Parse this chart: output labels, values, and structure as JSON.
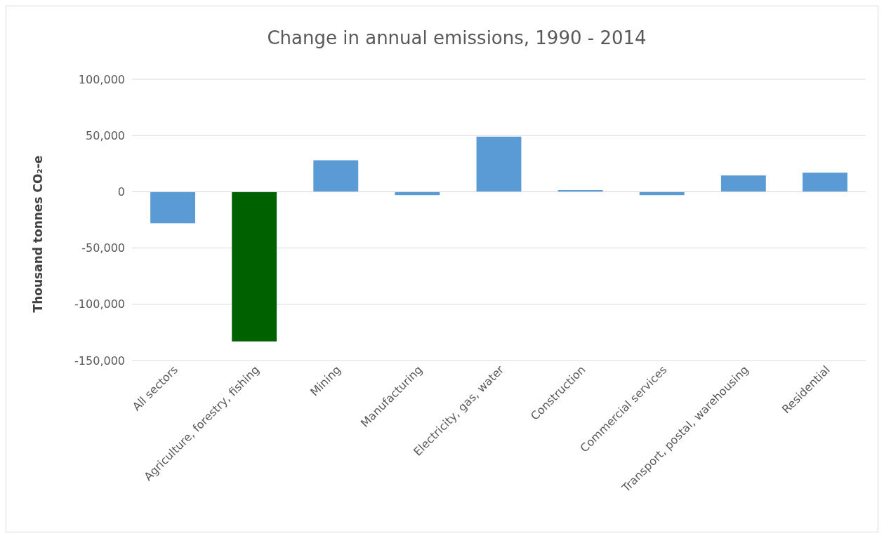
{
  "chart_data": {
    "type": "bar",
    "title": "Change in annual emissions, 1990 - 2014",
    "ylabel": "Thousand tonnes CO₂-e",
    "categories": [
      "All sectors",
      "Agriculture, forestry, fishing",
      "Mining",
      "Manufacturing",
      "Electricity, gas, water",
      "Construction",
      "Commercial services",
      "Transport, postal, warehousing",
      "Residential"
    ],
    "values": [
      -28000,
      -133000,
      28000,
      -3000,
      49000,
      1500,
      -3000,
      14500,
      17000
    ],
    "colors": [
      "#5b9bd5",
      "#006100",
      "#5b9bd5",
      "#5b9bd5",
      "#5b9bd5",
      "#5b9bd5",
      "#5b9bd5",
      "#5b9bd5",
      "#5b9bd5"
    ],
    "ylim": [
      -150000,
      100000
    ],
    "yticks": [
      {
        "value": -150000,
        "label": "-150,000"
      },
      {
        "value": -100000,
        "label": "-100,000"
      },
      {
        "value": -50000,
        "label": "-50,000"
      },
      0,
      {
        "value": 50000,
        "label": "50,000"
      },
      {
        "value": 100000,
        "label": "100,000"
      }
    ],
    "grid": "y"
  }
}
